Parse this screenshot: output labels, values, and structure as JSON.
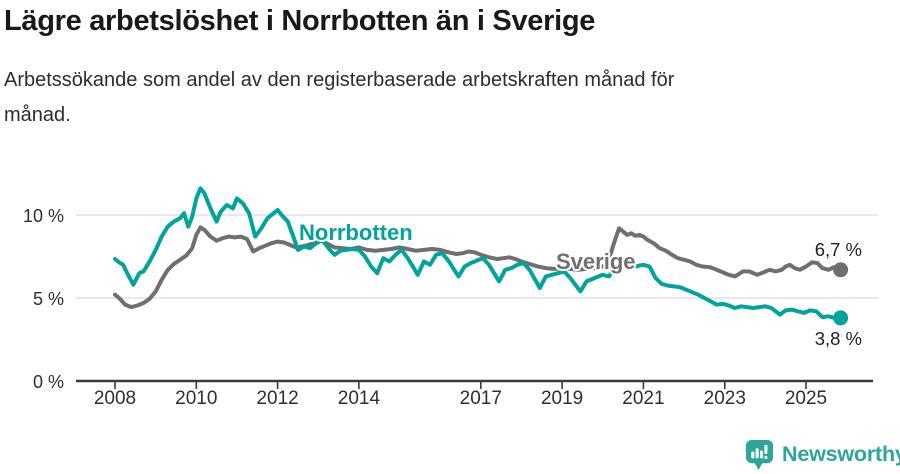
{
  "header": {
    "title": "Lägre arbetslöshet i Norrbotten än i Sverige",
    "subtitle_line1": "Arbetssökande som andel av den registerbaserade arbetskraften månad för",
    "subtitle_line2": "månad."
  },
  "chart_data": {
    "type": "line",
    "title": "Lägre arbetslöshet i Norrbotten än i Sverige",
    "subtitle": "Arbetssökande som andel av den registerbaserade arbetskraften månad för månad.",
    "unit": "%",
    "x_axis": {
      "tick_years": [
        2008,
        2010,
        2012,
        2014,
        2017,
        2019,
        2021,
        2023,
        2025
      ],
      "range_years": [
        2007.05,
        2026.65
      ],
      "grid": false
    },
    "y_axis": {
      "ticks": [
        0,
        5,
        10
      ],
      "tick_labels": [
        "0 %",
        "5 %",
        "10 %"
      ],
      "range": [
        0,
        13.6
      ],
      "grid": true,
      "grid_color": "#d9d9d9"
    },
    "axis_color": "#3a3a3a",
    "tick_text_color": "#2f2f2f",
    "series": [
      {
        "name": "Sverige",
        "color": "#6F6F6F",
        "end_label": "6,7 %",
        "end_value": 6.7,
        "points": [
          [
            2008.0,
            5.2
          ],
          [
            2008.1,
            5.0
          ],
          [
            2008.25,
            4.6
          ],
          [
            2008.4,
            4.45
          ],
          [
            2008.55,
            4.55
          ],
          [
            2008.7,
            4.7
          ],
          [
            2008.85,
            4.95
          ],
          [
            2009.0,
            5.4
          ],
          [
            2009.15,
            6.1
          ],
          [
            2009.3,
            6.7
          ],
          [
            2009.45,
            7.05
          ],
          [
            2009.6,
            7.3
          ],
          [
            2009.75,
            7.55
          ],
          [
            2009.9,
            8.0
          ],
          [
            2010.0,
            8.8
          ],
          [
            2010.1,
            9.25
          ],
          [
            2010.2,
            9.1
          ],
          [
            2010.35,
            8.7
          ],
          [
            2010.5,
            8.45
          ],
          [
            2010.65,
            8.6
          ],
          [
            2010.8,
            8.7
          ],
          [
            2010.95,
            8.65
          ],
          [
            2011.1,
            8.7
          ],
          [
            2011.25,
            8.55
          ],
          [
            2011.4,
            7.8
          ],
          [
            2011.55,
            8.0
          ],
          [
            2011.7,
            8.15
          ],
          [
            2011.85,
            8.3
          ],
          [
            2012.0,
            8.4
          ],
          [
            2012.15,
            8.35
          ],
          [
            2012.3,
            8.2
          ],
          [
            2012.45,
            8.05
          ],
          [
            2012.6,
            8.1
          ],
          [
            2012.75,
            8.2
          ],
          [
            2012.9,
            8.3
          ],
          [
            2013.05,
            8.45
          ],
          [
            2013.2,
            8.3
          ],
          [
            2013.4,
            8.05
          ],
          [
            2013.6,
            8.0
          ],
          [
            2013.8,
            7.95
          ],
          [
            2014.0,
            8.05
          ],
          [
            2014.2,
            7.9
          ],
          [
            2014.4,
            7.85
          ],
          [
            2014.6,
            7.9
          ],
          [
            2014.8,
            7.95
          ],
          [
            2015.0,
            8.05
          ],
          [
            2015.2,
            7.95
          ],
          [
            2015.4,
            7.85
          ],
          [
            2015.6,
            7.9
          ],
          [
            2015.8,
            7.95
          ],
          [
            2016.0,
            7.9
          ],
          [
            2016.2,
            7.75
          ],
          [
            2016.4,
            7.65
          ],
          [
            2016.55,
            7.7
          ],
          [
            2016.7,
            7.8
          ],
          [
            2016.85,
            7.75
          ],
          [
            2017.0,
            7.6
          ],
          [
            2017.2,
            7.45
          ],
          [
            2017.4,
            7.35
          ],
          [
            2017.55,
            7.4
          ],
          [
            2017.7,
            7.45
          ],
          [
            2017.85,
            7.35
          ],
          [
            2018.0,
            7.2
          ],
          [
            2018.2,
            7.05
          ],
          [
            2018.4,
            6.9
          ],
          [
            2018.6,
            6.8
          ],
          [
            2018.8,
            6.75
          ],
          [
            2019.0,
            6.8
          ],
          [
            2019.2,
            6.75
          ],
          [
            2019.4,
            6.7
          ],
          [
            2019.6,
            6.75
          ],
          [
            2019.8,
            6.8
          ],
          [
            2020.0,
            6.9
          ],
          [
            2020.1,
            7.1
          ],
          [
            2020.2,
            7.7
          ],
          [
            2020.3,
            8.5
          ],
          [
            2020.4,
            9.2
          ],
          [
            2020.5,
            9.0
          ],
          [
            2020.6,
            8.8
          ],
          [
            2020.7,
            8.9
          ],
          [
            2020.8,
            8.75
          ],
          [
            2020.9,
            8.8
          ],
          [
            2021.0,
            8.7
          ],
          [
            2021.1,
            8.5
          ],
          [
            2021.25,
            8.3
          ],
          [
            2021.4,
            8.0
          ],
          [
            2021.55,
            7.85
          ],
          [
            2021.7,
            7.6
          ],
          [
            2021.85,
            7.4
          ],
          [
            2022.0,
            7.3
          ],
          [
            2022.15,
            7.2
          ],
          [
            2022.3,
            7.0
          ],
          [
            2022.45,
            6.9
          ],
          [
            2022.65,
            6.85
          ],
          [
            2022.9,
            6.6
          ],
          [
            2023.1,
            6.4
          ],
          [
            2023.25,
            6.3
          ],
          [
            2023.45,
            6.6
          ],
          [
            2023.6,
            6.6
          ],
          [
            2023.8,
            6.4
          ],
          [
            2023.95,
            6.55
          ],
          [
            2024.1,
            6.7
          ],
          [
            2024.25,
            6.6
          ],
          [
            2024.4,
            6.7
          ],
          [
            2024.5,
            6.9
          ],
          [
            2024.6,
            7.0
          ],
          [
            2024.72,
            6.8
          ],
          [
            2024.85,
            6.7
          ],
          [
            2025.0,
            6.9
          ],
          [
            2025.15,
            7.15
          ],
          [
            2025.28,
            7.1
          ],
          [
            2025.4,
            6.8
          ],
          [
            2025.55,
            6.7
          ],
          [
            2025.68,
            6.85
          ],
          [
            2025.85,
            6.7
          ]
        ]
      },
      {
        "name": "Norrbotten",
        "color": "#00A49A",
        "end_label": "3,8 %",
        "end_value": 3.8,
        "points": [
          [
            2008.0,
            7.35
          ],
          [
            2008.1,
            7.15
          ],
          [
            2008.2,
            7.0
          ],
          [
            2008.3,
            6.5
          ],
          [
            2008.45,
            5.8
          ],
          [
            2008.6,
            6.5
          ],
          [
            2008.7,
            6.6
          ],
          [
            2008.85,
            7.2
          ],
          [
            2009.0,
            7.9
          ],
          [
            2009.15,
            8.7
          ],
          [
            2009.3,
            9.3
          ],
          [
            2009.45,
            9.6
          ],
          [
            2009.6,
            9.8
          ],
          [
            2009.7,
            10.1
          ],
          [
            2009.8,
            9.3
          ],
          [
            2009.9,
            9.9
          ],
          [
            2010.0,
            11.0
          ],
          [
            2010.1,
            11.6
          ],
          [
            2010.2,
            11.3
          ],
          [
            2010.35,
            10.4
          ],
          [
            2010.5,
            9.6
          ],
          [
            2010.6,
            10.2
          ],
          [
            2010.75,
            10.6
          ],
          [
            2010.9,
            10.4
          ],
          [
            2011.0,
            11.0
          ],
          [
            2011.15,
            10.7
          ],
          [
            2011.3,
            10.1
          ],
          [
            2011.45,
            8.7
          ],
          [
            2011.6,
            9.2
          ],
          [
            2011.75,
            9.8
          ],
          [
            2011.9,
            10.1
          ],
          [
            2012.0,
            10.3
          ],
          [
            2012.1,
            10.0
          ],
          [
            2012.25,
            9.6
          ],
          [
            2012.4,
            8.6
          ],
          [
            2012.5,
            7.9
          ],
          [
            2012.65,
            8.1
          ],
          [
            2012.8,
            8.0
          ],
          [
            2012.95,
            8.3
          ],
          [
            2013.1,
            8.5
          ],
          [
            2013.25,
            8.0
          ],
          [
            2013.4,
            7.6
          ],
          [
            2013.55,
            7.85
          ],
          [
            2013.7,
            7.9
          ],
          [
            2013.85,
            7.95
          ],
          [
            2014.0,
            7.9
          ],
          [
            2014.15,
            7.5
          ],
          [
            2014.3,
            6.9
          ],
          [
            2014.45,
            6.5
          ],
          [
            2014.6,
            7.4
          ],
          [
            2014.75,
            7.2
          ],
          [
            2014.9,
            7.6
          ],
          [
            2015.05,
            7.9
          ],
          [
            2015.2,
            7.4
          ],
          [
            2015.35,
            6.8
          ],
          [
            2015.45,
            6.4
          ],
          [
            2015.6,
            7.2
          ],
          [
            2015.75,
            7.0
          ],
          [
            2015.9,
            7.6
          ],
          [
            2016.05,
            7.7
          ],
          [
            2016.2,
            7.25
          ],
          [
            2016.45,
            6.3
          ],
          [
            2016.6,
            6.9
          ],
          [
            2016.75,
            7.1
          ],
          [
            2016.9,
            7.25
          ],
          [
            2017.05,
            7.4
          ],
          [
            2017.2,
            7.0
          ],
          [
            2017.45,
            6.0
          ],
          [
            2017.6,
            6.7
          ],
          [
            2017.75,
            6.8
          ],
          [
            2017.9,
            7.0
          ],
          [
            2018.05,
            7.1
          ],
          [
            2018.2,
            6.7
          ],
          [
            2018.45,
            5.6
          ],
          [
            2018.6,
            6.3
          ],
          [
            2018.75,
            6.4
          ],
          [
            2018.9,
            6.5
          ],
          [
            2019.05,
            6.6
          ],
          [
            2019.2,
            6.2
          ],
          [
            2019.45,
            5.4
          ],
          [
            2019.6,
            6.0
          ],
          [
            2019.75,
            6.15
          ],
          [
            2019.9,
            6.3
          ],
          [
            2020.0,
            6.4
          ],
          [
            2020.15,
            6.3
          ],
          [
            2020.3,
            6.8
          ],
          [
            2020.45,
            7.0
          ],
          [
            2020.6,
            6.9
          ],
          [
            2020.75,
            6.85
          ],
          [
            2020.9,
            6.95
          ],
          [
            2021.0,
            7.0
          ],
          [
            2021.15,
            6.9
          ],
          [
            2021.3,
            6.2
          ],
          [
            2021.45,
            5.85
          ],
          [
            2021.6,
            5.75
          ],
          [
            2021.75,
            5.7
          ],
          [
            2021.9,
            5.65
          ],
          [
            2022.05,
            5.5
          ],
          [
            2022.2,
            5.35
          ],
          [
            2022.35,
            5.2
          ],
          [
            2022.5,
            5.0
          ],
          [
            2022.65,
            4.8
          ],
          [
            2022.8,
            4.6
          ],
          [
            2022.95,
            4.65
          ],
          [
            2023.1,
            4.55
          ],
          [
            2023.25,
            4.4
          ],
          [
            2023.4,
            4.5
          ],
          [
            2023.55,
            4.45
          ],
          [
            2023.7,
            4.4
          ],
          [
            2023.85,
            4.45
          ],
          [
            2024.0,
            4.5
          ],
          [
            2024.15,
            4.4
          ],
          [
            2024.25,
            4.2
          ],
          [
            2024.36,
            4.0
          ],
          [
            2024.5,
            4.25
          ],
          [
            2024.65,
            4.3
          ],
          [
            2024.8,
            4.2
          ],
          [
            2024.95,
            4.1
          ],
          [
            2025.1,
            4.25
          ],
          [
            2025.25,
            4.2
          ],
          [
            2025.4,
            3.85
          ],
          [
            2025.55,
            3.9
          ],
          [
            2025.7,
            3.8
          ],
          [
            2025.85,
            3.8
          ]
        ]
      }
    ],
    "series_labels": [
      {
        "text": "Norrbotten",
        "color": "#00A49A"
      },
      {
        "text": "Sverige",
        "color": "#6F6F6F"
      }
    ],
    "legend_position": "inline-on-lines"
  },
  "footer": {
    "brand": "Newsworthy",
    "brand_color": "#2EA59B"
  }
}
